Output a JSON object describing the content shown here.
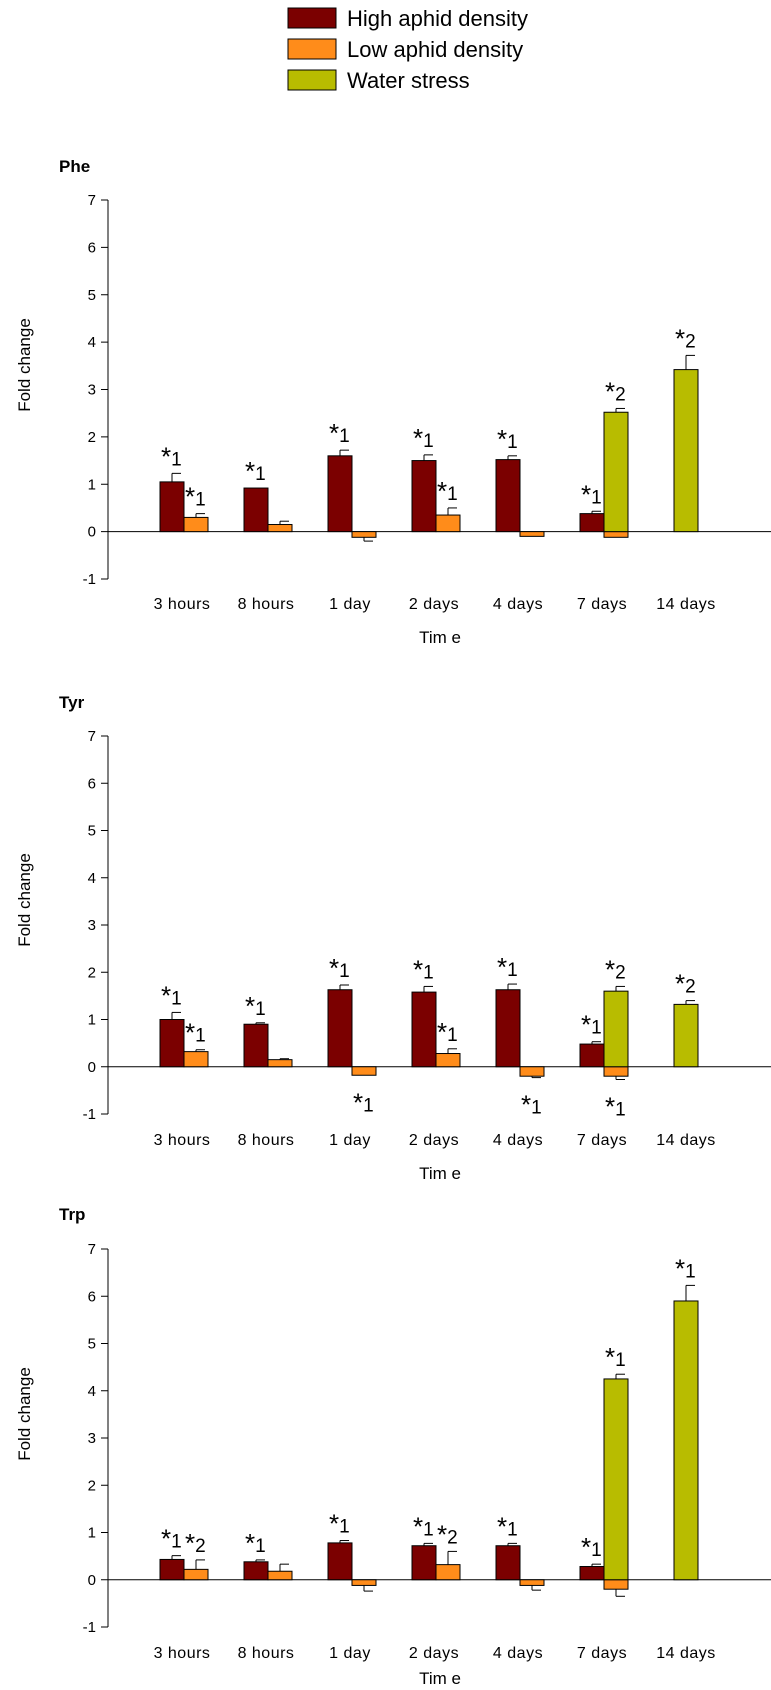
{
  "legend": [
    {
      "label": "High aphid density",
      "color": "#7b0000"
    },
    {
      "label": "Low aphid density",
      "color": "#ff8c1a"
    },
    {
      "label": "Water stress",
      "color": "#b8bc00"
    }
  ],
  "chart_data": [
    {
      "type": "bar",
      "title": "Phe",
      "xlabel": "Tim e",
      "ylabel": "Fold change",
      "ylim": [
        -1,
        7
      ],
      "yticks": [
        -1,
        0,
        1,
        2,
        3,
        4,
        5,
        6,
        7
      ],
      "categories": [
        "3 hours",
        "8 hours",
        "1 day",
        "2 days",
        "4 days",
        "7 days",
        "14 days"
      ],
      "series": [
        {
          "name": "High aphid density",
          "values": [
            1.05,
            0.92,
            1.6,
            1.5,
            1.52,
            0.38,
            null
          ],
          "errors": [
            0.18,
            0.0,
            0.12,
            0.12,
            0.08,
            0.05,
            null
          ],
          "annotations": [
            "1",
            "1",
            "1",
            "1",
            "1",
            "1",
            null
          ]
        },
        {
          "name": "Low aphid density",
          "values": [
            0.3,
            0.15,
            -0.12,
            0.35,
            -0.1,
            -0.12,
            null
          ],
          "errors": [
            0.08,
            0.07,
            0.08,
            0.15,
            0.0,
            0.0,
            null
          ],
          "annotations": [
            "1",
            null,
            null,
            "1",
            null,
            null,
            null
          ]
        },
        {
          "name": "Water stress",
          "values": [
            null,
            null,
            null,
            null,
            null,
            2.52,
            3.42
          ],
          "errors": [
            null,
            null,
            null,
            null,
            null,
            0.08,
            0.3
          ],
          "annotations": [
            null,
            null,
            null,
            null,
            null,
            "2",
            "2"
          ]
        }
      ]
    },
    {
      "type": "bar",
      "title": "Tyr",
      "xlabel": "Tim e",
      "ylabel": "Fold change",
      "ylim": [
        -1,
        7
      ],
      "yticks": [
        -1,
        0,
        1,
        2,
        3,
        4,
        5,
        6,
        7
      ],
      "categories": [
        "3 hours",
        "8 hours",
        "1 day",
        "2 days",
        "4 days",
        "7 days",
        "14 days"
      ],
      "series": [
        {
          "name": "High aphid density",
          "values": [
            1.0,
            0.9,
            1.63,
            1.58,
            1.63,
            0.48,
            null
          ],
          "errors": [
            0.15,
            0.03,
            0.1,
            0.12,
            0.12,
            0.05,
            null
          ],
          "annotations": [
            "1",
            "1",
            "1",
            "1",
            "1",
            "1",
            null
          ]
        },
        {
          "name": "Low aphid density",
          "values": [
            0.32,
            0.15,
            -0.18,
            0.28,
            -0.2,
            -0.2,
            null
          ],
          "errors": [
            0.04,
            0.02,
            0.0,
            0.1,
            0.03,
            0.07,
            null
          ],
          "annotations": [
            "1",
            null,
            "1",
            "1",
            "1",
            "1",
            null
          ]
        },
        {
          "name": "Water stress",
          "values": [
            null,
            null,
            null,
            null,
            null,
            1.6,
            1.32
          ],
          "errors": [
            null,
            null,
            null,
            null,
            null,
            0.1,
            0.08
          ],
          "annotations": [
            null,
            null,
            null,
            null,
            null,
            "2",
            "2"
          ]
        }
      ]
    },
    {
      "type": "bar",
      "title": "Trp",
      "xlabel": "Tim e",
      "ylabel": "Fold change",
      "ylim": [
        -1,
        7
      ],
      "yticks": [
        -1,
        0,
        1,
        2,
        3,
        4,
        5,
        6,
        7
      ],
      "categories": [
        "3 hours",
        "8 hours",
        "1 day",
        "2 days",
        "4 days",
        "7 days",
        "14 days"
      ],
      "series": [
        {
          "name": "High aphid density",
          "values": [
            0.43,
            0.38,
            0.78,
            0.72,
            0.72,
            0.28,
            null
          ],
          "errors": [
            0.08,
            0.04,
            0.05,
            0.05,
            0.05,
            0.05,
            null
          ],
          "annotations": [
            "1",
            "1",
            "1",
            "1",
            "1",
            "1",
            null
          ]
        },
        {
          "name": "Low aphid density",
          "values": [
            0.22,
            0.18,
            -0.12,
            0.32,
            -0.12,
            -0.2,
            null
          ],
          "errors": [
            0.2,
            0.15,
            0.12,
            0.28,
            0.1,
            0.15,
            null
          ],
          "annotations": [
            "2",
            null,
            null,
            "2",
            null,
            null,
            null
          ]
        },
        {
          "name": "Water stress",
          "values": [
            null,
            null,
            null,
            null,
            null,
            4.25,
            5.9
          ],
          "errors": [
            null,
            null,
            null,
            null,
            null,
            0.1,
            0.33
          ],
          "annotations": [
            null,
            null,
            null,
            null,
            null,
            "1",
            "1"
          ]
        }
      ]
    }
  ]
}
